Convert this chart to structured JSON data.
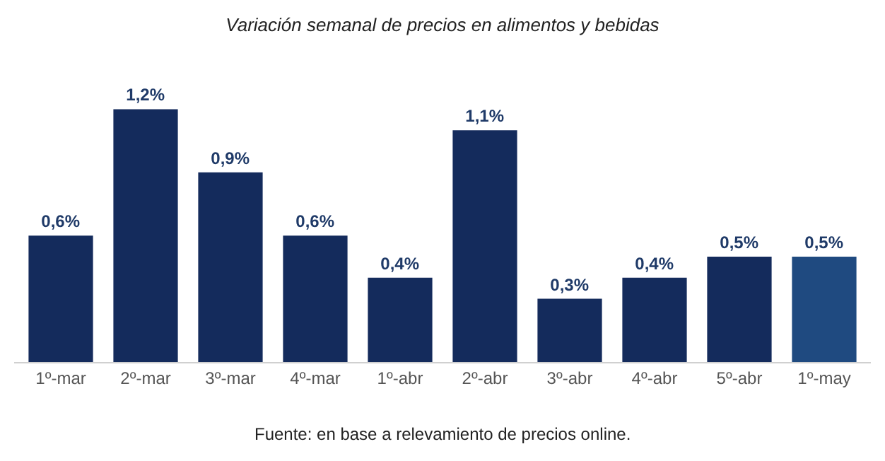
{
  "chart_data": {
    "type": "bar",
    "title": "Variación semanal de precios en alimentos y bebidas",
    "categories": [
      "1º-mar",
      "2º-mar",
      "3º-mar",
      "4º-mar",
      "1º-abr",
      "2º-abr",
      "3º-abr",
      "4º-abr",
      "5º-abr",
      "1º-may"
    ],
    "values": [
      0.6,
      1.2,
      0.9,
      0.6,
      0.4,
      1.1,
      0.3,
      0.4,
      0.5,
      0.5
    ],
    "value_labels": [
      "0,6%",
      "1,2%",
      "0,9%",
      "0,6%",
      "0,4%",
      "1,1%",
      "0,3%",
      "0,4%",
      "0,5%",
      "0,5%"
    ],
    "colors": [
      "#142b5c",
      "#142b5c",
      "#142b5c",
      "#142b5c",
      "#142b5c",
      "#142b5c",
      "#142b5c",
      "#142b5c",
      "#142b5c",
      "#1f4a80"
    ],
    "annotations": [
      "Fuente: en base a relevamiento de precios online."
    ]
  }
}
